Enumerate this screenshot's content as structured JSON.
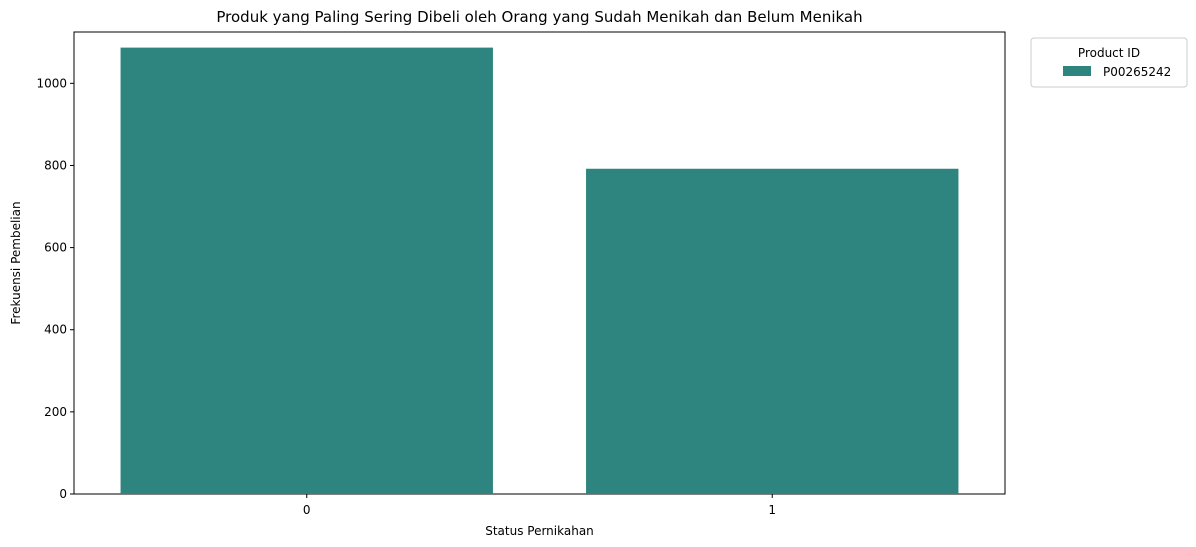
{
  "chart_data": {
    "type": "bar",
    "title": "Produk yang Paling Sering Dibeli oleh Orang yang Sudah Menikah dan Belum Menikah",
    "xlabel": "Status Pernikahan",
    "ylabel": "Frekuensi Pembelian",
    "categories": [
      "0",
      "1"
    ],
    "series": [
      {
        "name": "P00265242",
        "values": [
          1087,
          792
        ],
        "color": "#2e847f"
      }
    ],
    "ylim": [
      0,
      1125
    ],
    "yticks": [
      0,
      200,
      400,
      600,
      800,
      1000
    ],
    "legend": {
      "title": "Product ID",
      "placement": "outside-top-right"
    },
    "grid": false
  }
}
